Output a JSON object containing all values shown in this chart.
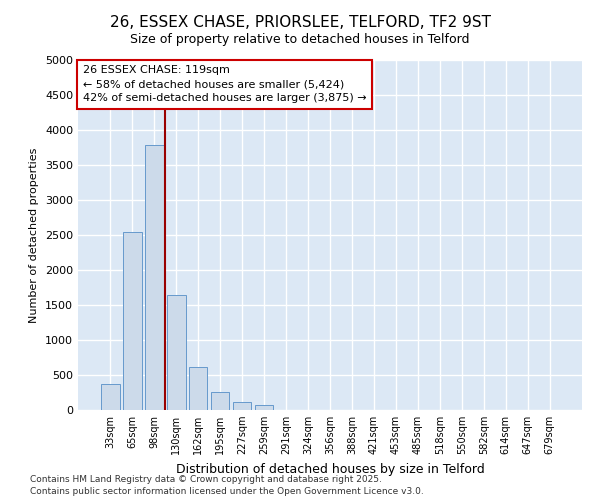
{
  "title_line1": "26, ESSEX CHASE, PRIORSLEE, TELFORD, TF2 9ST",
  "title_line2": "Size of property relative to detached houses in Telford",
  "xlabel": "Distribution of detached houses by size in Telford",
  "ylabel": "Number of detached properties",
  "categories": [
    "33sqm",
    "65sqm",
    "98sqm",
    "130sqm",
    "162sqm",
    "195sqm",
    "227sqm",
    "259sqm",
    "291sqm",
    "324sqm",
    "356sqm",
    "388sqm",
    "421sqm",
    "453sqm",
    "485sqm",
    "518sqm",
    "550sqm",
    "582sqm",
    "614sqm",
    "647sqm",
    "679sqm"
  ],
  "values": [
    370,
    2550,
    3780,
    1650,
    620,
    260,
    120,
    70,
    0,
    0,
    0,
    0,
    0,
    0,
    0,
    0,
    0,
    0,
    0,
    0,
    0
  ],
  "bar_color": "#ccdaea",
  "bar_edge_color": "#6699cc",
  "vline_position": 2.5,
  "vline_color": "#990000",
  "annotation_text": "26 ESSEX CHASE: 119sqm\n← 58% of detached houses are smaller (5,424)\n42% of semi-detached houses are larger (3,875) →",
  "annotation_box_color": "#ffffff",
  "annotation_box_edge_color": "#cc0000",
  "ylim": [
    0,
    5000
  ],
  "yticks": [
    0,
    500,
    1000,
    1500,
    2000,
    2500,
    3000,
    3500,
    4000,
    4500,
    5000
  ],
  "plot_bg_color": "#dce8f5",
  "fig_bg_color": "#ffffff",
  "grid_color": "#ffffff",
  "footer_line1": "Contains HM Land Registry data © Crown copyright and database right 2025.",
  "footer_line2": "Contains public sector information licensed under the Open Government Licence v3.0."
}
